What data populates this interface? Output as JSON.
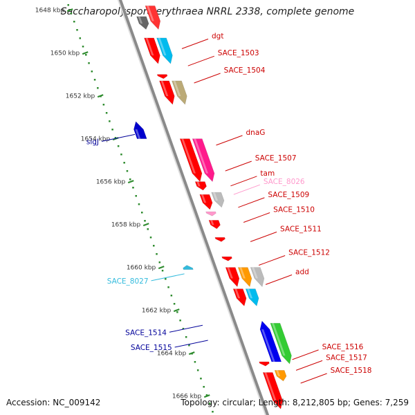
{
  "title": "Saccharopolyspora erythraea NRRL 2338, complete genome",
  "footer": {
    "accession": "Accession: NC_009142",
    "summary": "Topology: circular; Length: 8,212,805 bp; Genes: 7,259"
  },
  "colors": {
    "backbone": "#8a8a8a",
    "ruler": "#2e8b2e",
    "label_red": "#cc0000",
    "label_blue": "#000099",
    "label_cyan": "#33bbdd",
    "label_pink": "#ff99cc"
  },
  "ruler_ticks": [
    {
      "kbp": 1648,
      "label": "1648 kbp"
    },
    {
      "kbp": 1650,
      "label": "1650 kbp"
    },
    {
      "kbp": 1652,
      "label": "1652 kbp"
    },
    {
      "kbp": 1654,
      "label": "1654 kbp"
    },
    {
      "kbp": 1656,
      "label": "1656 kbp"
    },
    {
      "kbp": 1658,
      "label": "1658 kbp"
    },
    {
      "kbp": 1660,
      "label": "1660 kbp"
    },
    {
      "kbp": 1662,
      "label": "1662 kbp"
    },
    {
      "kbp": 1664,
      "label": "1664 kbp"
    },
    {
      "kbp": 1666,
      "label": "1666 kbp"
    }
  ],
  "features": [
    {
      "name": "",
      "track": "cds",
      "strand": "+",
      "start": 1647.8,
      "end": 1648.9,
      "color": "#ff3333"
    },
    {
      "name": "",
      "track": "gene",
      "strand": "+",
      "start": 1648.3,
      "end": 1648.9,
      "color": "#666666"
    },
    {
      "name": "dgt",
      "track": "gene",
      "strand": "+",
      "start": 1649.3,
      "end": 1650.5,
      "color": "#ff0000"
    },
    {
      "name": "SACE_1503",
      "track": "cds",
      "strand": "+",
      "start": 1649.3,
      "end": 1650.5,
      "color": "#00bbee"
    },
    {
      "name": "",
      "track": "gene",
      "strand": "+",
      "start": 1651.0,
      "end": 1651.2,
      "color": "#ff0000"
    },
    {
      "name": "SACE_1504",
      "track": "cds",
      "strand": "+",
      "start": 1651.3,
      "end": 1652.4,
      "color": "#bbaa77"
    },
    {
      "name": "",
      "track": "gene",
      "strand": "+",
      "start": 1651.3,
      "end": 1652.4,
      "color": "#ff0000"
    },
    {
      "name": "sigJ",
      "track": "antisense",
      "strand": "-",
      "start": 1653.2,
      "end": 1654.0,
      "color": "#0000cc"
    },
    {
      "name": "dnaG",
      "track": "cds",
      "strand": "+",
      "start": 1654.0,
      "end": 1656.0,
      "color": "#ff1a8c"
    },
    {
      "name": "",
      "track": "gene",
      "strand": "+",
      "start": 1654.0,
      "end": 1656.0,
      "color": "#ff0000"
    },
    {
      "name": "SACE_1507",
      "track": "gene",
      "strand": "+",
      "start": 1656.0,
      "end": 1656.4,
      "color": "#ff0000"
    },
    {
      "name": "tam",
      "track": "gene",
      "strand": "+",
      "start": 1656.6,
      "end": 1657.3,
      "color": "#ff0000"
    },
    {
      "name": "SACE_8026",
      "track": "cds",
      "strand": "+",
      "start": 1656.5,
      "end": 1657.2,
      "color": "#bbbbbb"
    },
    {
      "name": "SACE_1509",
      "track": "gene",
      "strand": "+",
      "start": 1657.4,
      "end": 1657.6,
      "color": "#ff99cc"
    },
    {
      "name": "SACE_1510",
      "track": "gene",
      "strand": "+",
      "start": 1657.8,
      "end": 1658.2,
      "color": "#ff0000"
    },
    {
      "name": "SACE_1511",
      "track": "gene",
      "strand": "+",
      "start": 1658.6,
      "end": 1658.8,
      "color": "#ff0000"
    },
    {
      "name": "SACE_1512",
      "track": "gene",
      "strand": "+",
      "start": 1659.5,
      "end": 1659.7,
      "color": "#ff0000"
    },
    {
      "name": "SACE_8027",
      "track": "antisense",
      "strand": "-",
      "start": 1659.9,
      "end": 1660.1,
      "color": "#33bbdd"
    },
    {
      "name": "",
      "track": "gene",
      "strand": "+",
      "start": 1660.0,
      "end": 1660.9,
      "color": "#ff0000"
    },
    {
      "name": "",
      "track": "cds",
      "strand": "+",
      "start": 1660.0,
      "end": 1660.9,
      "color": "#ff9900"
    },
    {
      "name": "",
      "track": "cds2",
      "strand": "+",
      "start": 1660.0,
      "end": 1660.9,
      "color": "#bbbbbb"
    },
    {
      "name": "add",
      "track": "gene",
      "strand": "+",
      "start": 1661.0,
      "end": 1661.8,
      "color": "#ff0000"
    },
    {
      "name": "",
      "track": "cds",
      "strand": "+",
      "start": 1661.0,
      "end": 1661.8,
      "color": "#00bbee"
    },
    {
      "name": "SACE_1514",
      "track": "cds2",
      "strand": "+",
      "start": 1662.6,
      "end": 1664.5,
      "color": "#33cc33"
    },
    {
      "name": "SACE_1515",
      "track": "cds",
      "strand": "-",
      "start": 1662.5,
      "end": 1664.4,
      "color": "#0000ee"
    },
    {
      "name": "SACE_1516",
      "track": "gene",
      "strand": "+",
      "start": 1664.4,
      "end": 1664.6,
      "color": "#ff0000"
    },
    {
      "name": "SACE_1517",
      "track": "cds",
      "strand": "+",
      "start": 1664.8,
      "end": 1665.3,
      "color": "#ff9900"
    },
    {
      "name": "SACE_1518",
      "track": "gene",
      "strand": "+",
      "start": 1664.9,
      "end": 1666.6,
      "color": "#ff0000"
    }
  ],
  "labels": [
    {
      "text": "dgt",
      "color": "#cc0000",
      "kbp": 1649.8,
      "side": "right"
    },
    {
      "text": "SACE_1503",
      "color": "#cc0000",
      "kbp": 1650.6,
      "side": "right"
    },
    {
      "text": "SACE_1504",
      "color": "#cc0000",
      "kbp": 1651.4,
      "side": "right"
    },
    {
      "text": "sigJ",
      "color": "#000099",
      "kbp": 1653.8,
      "side": "left"
    },
    {
      "text": "dnaG",
      "color": "#cc0000",
      "kbp": 1654.3,
      "side": "right"
    },
    {
      "text": "SACE_1507",
      "color": "#cc0000",
      "kbp": 1655.5,
      "side": "right"
    },
    {
      "text": "tam",
      "color": "#cc0000",
      "kbp": 1656.2,
      "side": "right"
    },
    {
      "text": "SACE_8026",
      "color": "#ff99cc",
      "kbp": 1656.6,
      "side": "right"
    },
    {
      "text": "SACE_1509",
      "color": "#cc0000",
      "kbp": 1657.2,
      "side": "right"
    },
    {
      "text": "SACE_1510",
      "color": "#cc0000",
      "kbp": 1657.9,
      "side": "right"
    },
    {
      "text": "SACE_1511",
      "color": "#cc0000",
      "kbp": 1658.8,
      "side": "right"
    },
    {
      "text": "SACE_1512",
      "color": "#cc0000",
      "kbp": 1659.9,
      "side": "right"
    },
    {
      "text": "SACE_8027",
      "color": "#33bbdd",
      "kbp": 1660.3,
      "side": "left"
    },
    {
      "text": "add",
      "color": "#cc0000",
      "kbp": 1660.8,
      "side": "right"
    },
    {
      "text": "SACE_1514",
      "color": "#000099",
      "kbp": 1662.7,
      "side": "left"
    },
    {
      "text": "SACE_1515",
      "color": "#000099",
      "kbp": 1663.4,
      "side": "left"
    },
    {
      "text": "SACE_1516",
      "color": "#cc0000",
      "kbp": 1664.3,
      "side": "right"
    },
    {
      "text": "SACE_1517",
      "color": "#cc0000",
      "kbp": 1664.8,
      "side": "right"
    },
    {
      "text": "SACE_1518",
      "color": "#cc0000",
      "kbp": 1665.4,
      "side": "right"
    }
  ]
}
